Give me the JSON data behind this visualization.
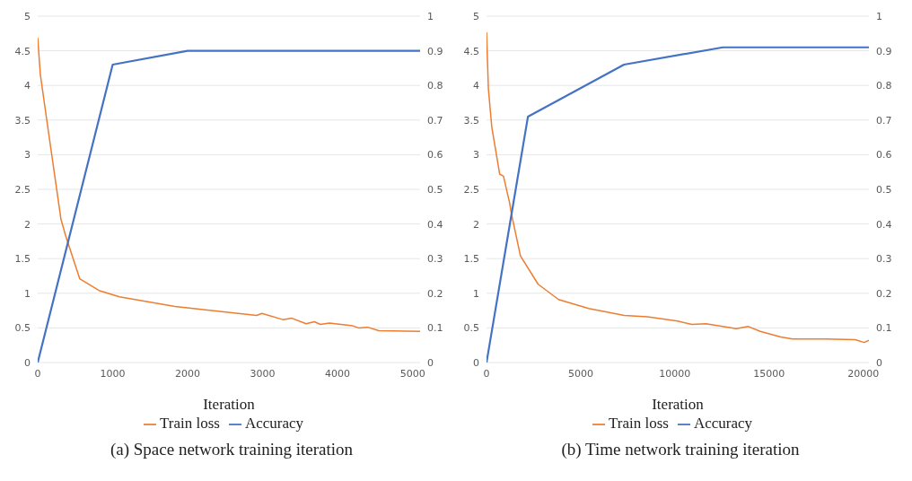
{
  "chart_data": [
    {
      "type": "line",
      "title": "(a) Space network training iteration",
      "xlabel": "Iteration",
      "xlim": [
        0,
        5100
      ],
      "xticks": [
        0,
        1000,
        2000,
        3000,
        4000,
        5000
      ],
      "ylim": [
        0,
        5
      ],
      "yticks": [
        0,
        0.5,
        1,
        1.5,
        2,
        2.5,
        3,
        3.5,
        4,
        4.5,
        5
      ],
      "y2lim": [
        0,
        1
      ],
      "y2ticks": [
        0,
        0.1,
        0.2,
        0.3,
        0.4,
        0.5,
        0.6,
        0.7,
        0.8,
        0.9,
        1
      ],
      "grid": "y",
      "legend": "bottom",
      "series": [
        {
          "name": "Train loss",
          "color": "#ed7d31",
          "x": [
            0,
            35,
            117,
            310,
            370,
            560,
            817,
            1090,
            1830,
            2920,
            2990,
            3270,
            3390,
            3580,
            3690,
            3770,
            3890,
            4200,
            4280,
            4400,
            4550,
            5100
          ],
          "values": [
            4.69,
            4.16,
            3.53,
            2.07,
            1.84,
            1.21,
            1.04,
            0.95,
            0.81,
            0.68,
            0.71,
            0.62,
            0.64,
            0.56,
            0.59,
            0.55,
            0.57,
            0.53,
            0.5,
            0.51,
            0.46,
            0.45
          ]
        },
        {
          "name": "Accuracy",
          "color": "#4472c4",
          "axis": "y2",
          "x": [
            0,
            1000,
            2000,
            5100
          ],
          "values": [
            0,
            0.86,
            0.9,
            0.9
          ]
        }
      ]
    },
    {
      "type": "line",
      "title": "(b) Time network training iteration",
      "xlabel": "Iteration",
      "xlim": [
        0,
        20300
      ],
      "xticks": [
        0,
        5000,
        10000,
        15000,
        20000
      ],
      "ylim": [
        0,
        5
      ],
      "yticks": [
        0,
        0.5,
        1,
        1.5,
        2,
        2.5,
        3,
        3.5,
        4,
        4.5,
        5
      ],
      "y2lim": [
        0,
        1
      ],
      "y2ticks": [
        0,
        0.1,
        0.2,
        0.3,
        0.4,
        0.5,
        0.6,
        0.7,
        0.8,
        0.9,
        1
      ],
      "grid": "y",
      "legend": "bottom",
      "series": [
        {
          "name": "Train loss",
          "color": "#ed7d31",
          "x": [
            0,
            100,
            280,
            700,
            900,
            1230,
            1320,
            1800,
            2740,
            3820,
            5420,
            7310,
            8540,
            10140,
            10900,
            11650,
            13260,
            13900,
            14530,
            15620,
            16250,
            17980,
            19570,
            20050,
            20300
          ],
          "values": [
            4.77,
            3.95,
            3.4,
            2.72,
            2.69,
            2.3,
            2.15,
            1.54,
            1.13,
            0.91,
            0.78,
            0.68,
            0.66,
            0.6,
            0.55,
            0.56,
            0.49,
            0.52,
            0.45,
            0.37,
            0.34,
            0.34,
            0.33,
            0.29,
            0.32
          ]
        },
        {
          "name": "Accuracy",
          "color": "#4472c4",
          "axis": "y2",
          "x": [
            0,
            2200,
            7300,
            12550,
            20300
          ],
          "values": [
            0,
            0.71,
            0.86,
            0.91,
            0.91
          ]
        }
      ]
    }
  ]
}
